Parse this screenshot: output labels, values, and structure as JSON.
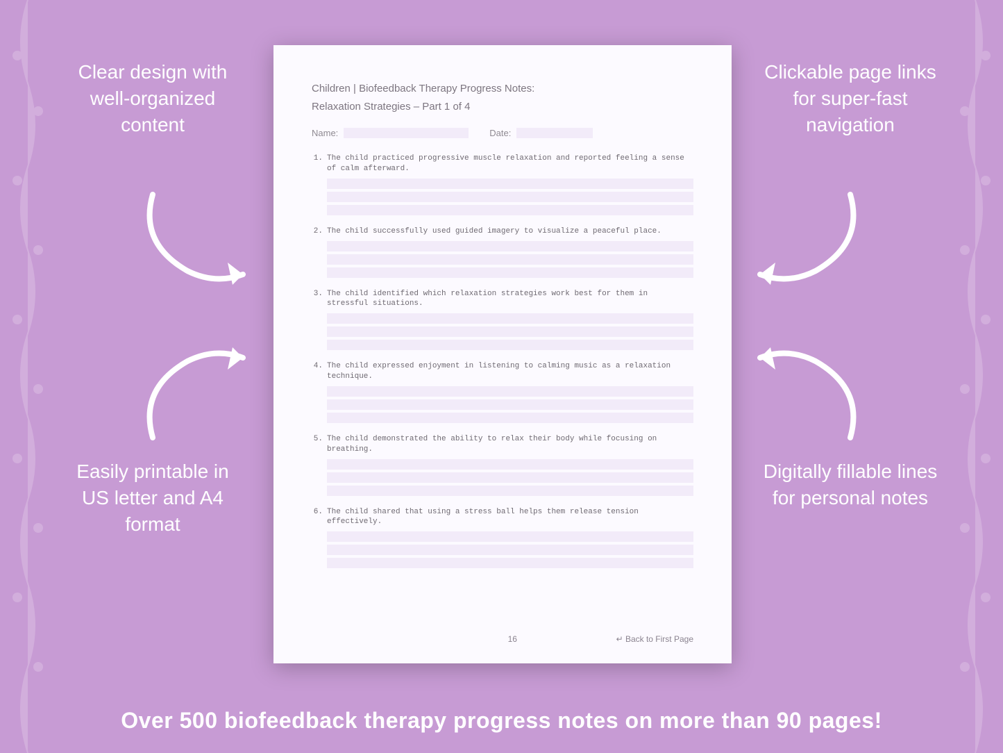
{
  "background_color": "#c79bd4",
  "page_color": "#fcfaff",
  "fill_color": "#f2ebf9",
  "text_muted": "#7d7680",
  "callouts": {
    "tl": "Clear design with well-organized content",
    "tr": "Clickable page links for super-fast navigation",
    "bl": "Easily printable in US letter and A4 format",
    "br": "Digitally fillable lines for personal notes"
  },
  "doc": {
    "title_line1": "Children | Biofeedback Therapy Progress Notes:",
    "title_line2": "Relaxation Strategies  – Part 1 of 4",
    "name_label": "Name:",
    "date_label": "Date:",
    "items": [
      {
        "n": "1.",
        "t": "The child practiced progressive muscle relaxation and reported feeling a sense of calm afterward."
      },
      {
        "n": "2.",
        "t": "The child successfully used guided imagery to visualize a peaceful place."
      },
      {
        "n": "3.",
        "t": "The child identified which relaxation strategies work best for them in stressful situations."
      },
      {
        "n": "4.",
        "t": "The child expressed enjoyment in listening to calming music as a relaxation technique."
      },
      {
        "n": "5.",
        "t": "The child demonstrated the ability to relax their body while focusing on breathing."
      },
      {
        "n": "6.",
        "t": "The child shared that using a stress ball helps them release tension effectively."
      }
    ],
    "page_number": "16",
    "back_link": "↵ Back to First Page"
  },
  "banner": "Over 500 biofeedback therapy progress notes on more than 90 pages!"
}
